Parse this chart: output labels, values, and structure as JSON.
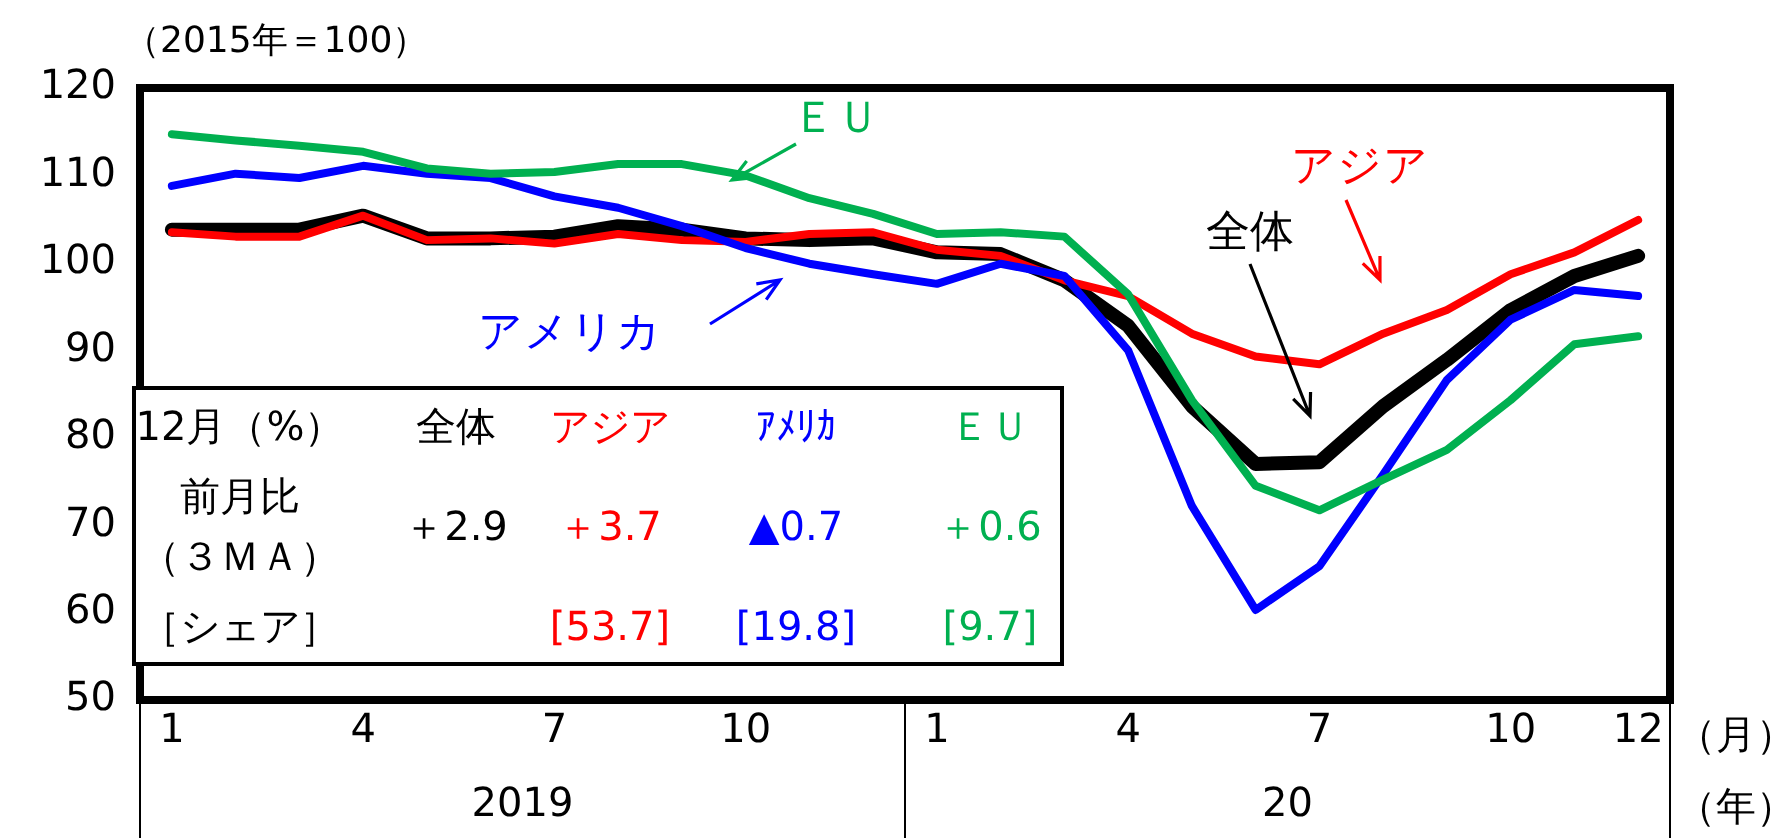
{
  "chart_data": {
    "type": "line",
    "ylabel": "（2015年＝100）",
    "xlabel": "（月）",
    "categories": [
      "1",
      null,
      null,
      "4",
      null,
      null,
      "7",
      null,
      null,
      "10",
      null,
      null,
      "1",
      null,
      null,
      "4",
      null,
      null,
      "7",
      null,
      null,
      "10",
      null,
      "12"
    ],
    "ylim": [
      50,
      120
    ],
    "yticks": [
      50,
      60,
      70,
      80,
      90,
      100,
      110,
      120
    ],
    "grid": false,
    "legend": false,
    "marker": "none",
    "line_style": "solid",
    "annotations": [
      "12月（%）",
      "全体",
      "アジア",
      "ｱﾒﾘｶ",
      "ＥＵ",
      "前月比",
      "（３ＭＡ）",
      "＋2.9",
      "＋3.7",
      "▲0.7",
      "＋0.6",
      "［シェア］",
      "[53.7]",
      "[19.8]",
      "[9.7]",
      "2019",
      "20",
      "（年）"
    ],
    "series": [
      {
        "name": "ＥＵ",
        "color": "#00b050",
        "values": [
          114.7,
          114,
          113.4,
          112.7,
          110.8,
          110.2,
          110.4,
          111.3,
          111.3,
          110,
          107.4,
          105.6,
          103.3,
          103.5,
          103,
          96.4,
          84.3,
          74.5,
          71.7,
          75.2,
          78.6,
          84.3,
          90.7,
          91.6
        ]
      },
      {
        "name": "アメリカ",
        "color": "#0000ff",
        "values": [
          108.8,
          110.2,
          109.7,
          111.1,
          110.2,
          109.7,
          107.6,
          106.3,
          104.2,
          101.7,
          99.9,
          98.7,
          97.6,
          99.9,
          98.5,
          90,
          72.2,
          60.3,
          65.3,
          75.8,
          86.6,
          93.5,
          96.9,
          96.2
        ]
      },
      {
        "name": "アジア",
        "color": "#ff0000",
        "values": [
          103.5,
          103,
          103,
          105.4,
          102.6,
          102.8,
          102.2,
          103.3,
          102.6,
          102.4,
          103.3,
          103.5,
          101.5,
          100.8,
          98,
          96.2,
          91.9,
          89.3,
          88.4,
          91.9,
          94.6,
          98.7,
          101.2,
          104.9
        ]
      },
      {
        "name": "全体",
        "color": "#000000",
        "values": [
          103.8,
          103.8,
          103.8,
          105.4,
          102.8,
          102.8,
          103,
          104.2,
          103.8,
          102.8,
          102.6,
          102.8,
          101.2,
          101,
          98,
          92.8,
          83.6,
          77,
          77.2,
          83.6,
          88.9,
          94.6,
          98.5,
          100.8
        ]
      }
    ]
  }
}
